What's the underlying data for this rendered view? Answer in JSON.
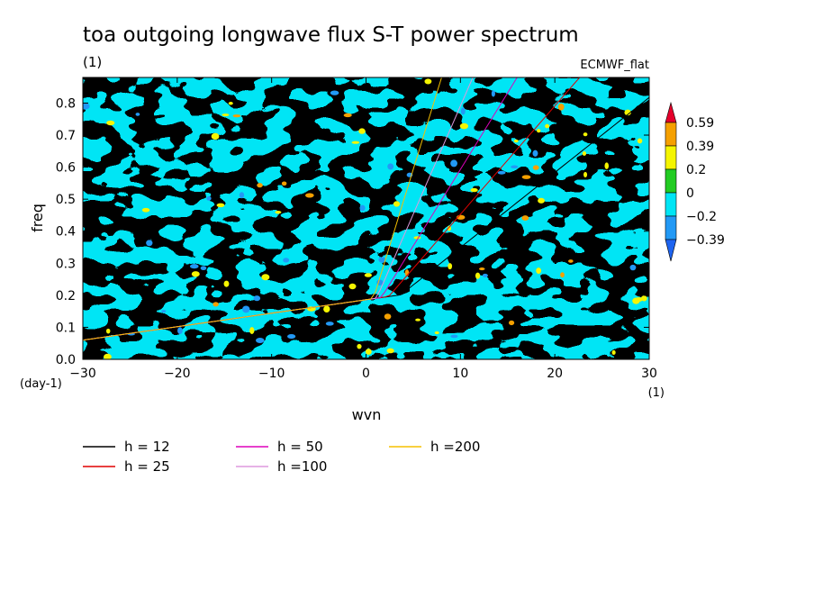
{
  "chart_data": {
    "type": "heatmap",
    "title": "toa outgoing longwave flux S-T power spectrum",
    "subtitle": "(1)",
    "source_label": "ECMWF_flat",
    "xlabel": "wvn",
    "ylabel": "freq",
    "x_unit_label": "(1)",
    "y_unit_label": "(day-1)",
    "xlim": [
      -30,
      30
    ],
    "ylim": [
      0,
      0.88
    ],
    "x_ticks": [
      {
        "value": -30,
        "label": "−30"
      },
      {
        "value": -20,
        "label": "−20"
      },
      {
        "value": -10,
        "label": "−10"
      },
      {
        "value": 0,
        "label": "0"
      },
      {
        "value": 10,
        "label": "10"
      },
      {
        "value": 20,
        "label": "20"
      },
      {
        "value": 30,
        "label": "30"
      }
    ],
    "y_ticks": [
      {
        "value": 0,
        "label": "0.0"
      },
      {
        "value": 0.1,
        "label": "0.1"
      },
      {
        "value": 0.2,
        "label": "0.2"
      },
      {
        "value": 0.3,
        "label": "0.3"
      },
      {
        "value": 0.4,
        "label": "0.4"
      },
      {
        "value": 0.5,
        "label": "0.5"
      },
      {
        "value": 0.6,
        "label": "0.6"
      },
      {
        "value": 0.7,
        "label": "0.7"
      },
      {
        "value": 0.8,
        "label": "0.8"
      }
    ],
    "colorbar": {
      "bins": [
        {
          "color": "#e5002b"
        },
        {
          "color": "#f5a000"
        },
        {
          "color": "#f5f500"
        },
        {
          "color": "#22cc22"
        },
        {
          "color": "#00e5f5"
        },
        {
          "color": "#2299f5"
        },
        {
          "color": "#1e64f0"
        }
      ],
      "labels": [
        "0.59",
        "0.39",
        "0.2",
        "0",
        "−0.2",
        "−0.39"
      ]
    },
    "series": [
      {
        "name": "h = 12",
        "equivalent_depth": 12,
        "color": "#000000"
      },
      {
        "name": "h = 25",
        "equivalent_depth": 25,
        "color": "#e00000"
      },
      {
        "name": "h = 50",
        "equivalent_depth": 50,
        "color": "#dd00bb"
      },
      {
        "name": "h =100",
        "equivalent_depth": 100,
        "color": "#dd99dd"
      },
      {
        "name": "h =200",
        "equivalent_depth": 200,
        "color": "#f5c000"
      }
    ],
    "grid": false,
    "legend_position": "bottom-left"
  }
}
